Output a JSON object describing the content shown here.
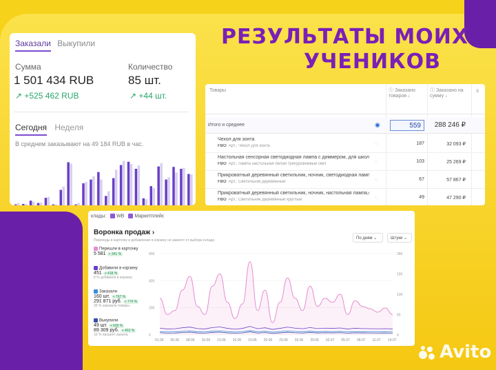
{
  "heading": {
    "line1": "РЕЗУЛЬТАТЫ МОИХ",
    "line2": "УЧЕНИКОВ"
  },
  "card1": {
    "tabs": [
      "Заказали",
      "Выкупили"
    ],
    "sum_label": "Сумма",
    "sum_value": "1 501 434 RUB",
    "sum_delta": "+525 462 RUB",
    "qty_label": "Количество",
    "qty_value": "85 шт.",
    "qty_delta": "+44 шт.",
    "period_tabs": [
      "Сегодня",
      "Неделя"
    ],
    "avg_text": "В среднем заказывают на 49 184 RUB в час.",
    "delta_icon": "arrow-up-right-icon",
    "bar_colors": {
      "primary": "#6a3fc7",
      "secondary": "#d6d0ef"
    },
    "bars_primary": [
      0.02,
      0.03,
      0.1,
      0.05,
      0.16,
      0.02,
      0.33,
      0.92,
      0.02,
      0.47,
      0.55,
      0.71,
      0.2,
      0.58,
      0.86,
      0.93,
      0.78,
      0.15,
      0.41,
      0.83,
      0.55,
      0.82,
      0.78,
      0.67
    ],
    "bars_secondary": [
      0.05,
      0.03,
      0.08,
      0.06,
      0.18,
      0.02,
      0.4,
      0.89,
      0.05,
      0.5,
      0.62,
      0.55,
      0.3,
      0.76,
      0.95,
      0.88,
      0.85,
      0.13,
      0.37,
      0.9,
      0.6,
      0.7,
      0.8,
      0.66
    ]
  },
  "table": {
    "col_product": "Товары",
    "col_ordered_qty": "Заказано товаров",
    "col_ordered_sum": "Заказано на сумму",
    "total_label": "Итого и среднее",
    "total_qty": "559",
    "total_sum": "288 246 ₽",
    "rows": [
      {
        "name": "Чехол для зонта",
        "fbo": "FBO",
        "article": "Арт.: Чехол для зонта",
        "qty": "187",
        "sum": "32 093 ₽"
      },
      {
        "name": "Настольная сенсорная светодиодная лампа с диммером, для школьн",
        "fbo": "FBO",
        "article": "Арт.: Лампа настольная белая трехуровневый свет",
        "qty": "103",
        "sum": "25 269 ₽"
      },
      {
        "name": "Прикроватный деревянный светильник, ночник, светодиодная лампа",
        "fbo": "FBO",
        "article": "Арт.: Светильник деревянный",
        "qty": "67",
        "sum": "57 867 ₽"
      },
      {
        "name": "Прикроватный деревянный светильник, ночник, настольная лампа,с в",
        "fbo": "FBO",
        "article": "Арт.: Светильник деревянный круглый",
        "qty": "49",
        "sum": "47 290 ₽"
      }
    ]
  },
  "funnel": {
    "warehouse_label": "клады:",
    "wh_tabs": [
      "WB",
      "Маркетплейс"
    ],
    "title": "Воронка продаж",
    "subtitle": "Переходы в карточку и добавление в корзину не зависят от выбора склада",
    "period_select": "По дням",
    "unit_select": "Штуки",
    "metrics": [
      {
        "label": "Перешли в карточку",
        "value": "5 581",
        "badge": "+ 341 %",
        "note": "",
        "color": "#e58bd0"
      },
      {
        "label": "Добавили в корзину",
        "value": "451",
        "badge": "+ 418 %",
        "note": "8 % добавили в корзину",
        "color": "#6a3fc7"
      },
      {
        "label": "Заказали",
        "value": "160 шт.",
        "badge": "+ 767 %",
        "value2": "291 871 руб.",
        "badge2": "+ 774 %",
        "note": "35 % заказали товары",
        "color": "#3b8fdc"
      },
      {
        "label": "Выкупили",
        "value": "49 шт.",
        "badge": "+ 600 %",
        "value2": "89 309 руб.",
        "badge2": "+ 402 %",
        "note": "33 % процент выкупа",
        "color": "#3a4fa8"
      }
    ],
    "y_left": [
      "600",
      "400",
      "200",
      "0"
    ],
    "y_right": [
      "260",
      "195",
      "130",
      "65",
      "0"
    ],
    "x_labels": [
      "01.06",
      "05.06",
      "08.06",
      "10.06",
      "13.06",
      "16.06",
      "19.06",
      "20.06",
      "23.06",
      "26.06",
      "29.06",
      "02.07",
      "05.07",
      "08.07",
      "11.07",
      "14.07"
    ]
  },
  "avito": {
    "label": "Avito"
  }
}
